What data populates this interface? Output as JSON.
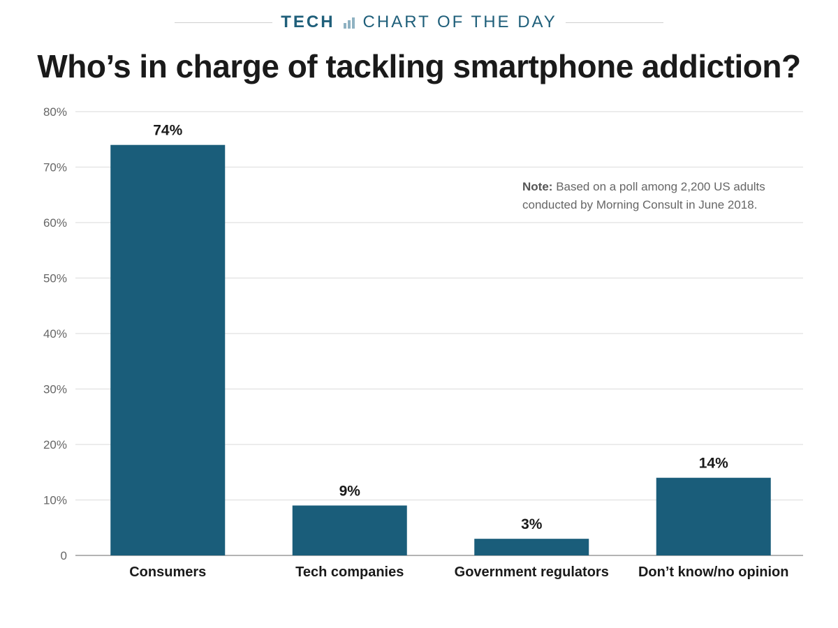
{
  "header": {
    "kicker_section": "TECH",
    "kicker_rest": "CHART OF THE DAY"
  },
  "colors": {
    "bar": "#1a5d7a",
    "accent": "#1f5f7a",
    "grid": "#e6e6e6",
    "axis_text": "#666666",
    "label_text": "#1a1a1a"
  },
  "note": {
    "label": "Note:",
    "text": "Based on a poll among 2,200 US adults conducted by Morning Consult in June 2018."
  },
  "chart_data": {
    "type": "bar",
    "title": "Who’s in charge of tackling smartphone addiction?",
    "categories": [
      "Consumers",
      "Tech companies",
      "Government regulators",
      "Don’t know/no opinion"
    ],
    "values": [
      74,
      9,
      3,
      14
    ],
    "data_labels": [
      "74%",
      "9%",
      "3%",
      "14%"
    ],
    "ylim": [
      0,
      80
    ],
    "yticks": [
      0,
      10,
      20,
      30,
      40,
      50,
      60,
      70,
      80
    ],
    "ytick_labels": [
      "0",
      "10%",
      "20%",
      "30%",
      "40%",
      "50%",
      "60%",
      "70%",
      "80%"
    ],
    "xlabel": "",
    "ylabel": "",
    "grid": true
  }
}
